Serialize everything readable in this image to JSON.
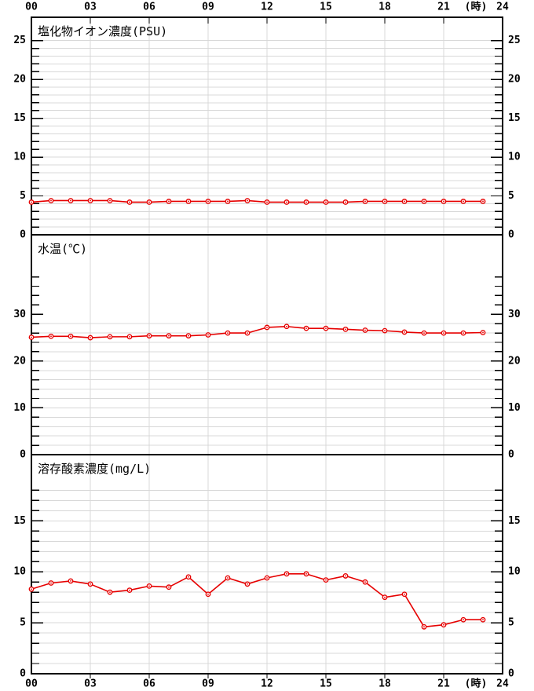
{
  "colors": {
    "series": "#e60000",
    "grid": "#d8d8d8",
    "axis": "#000000",
    "background": "#ffffff"
  },
  "x_axis": {
    "xlim": [
      0,
      24
    ],
    "tick_hours": [
      0,
      3,
      6,
      9,
      12,
      15,
      18,
      21,
      24
    ],
    "tick_labels": [
      "00",
      "03",
      "06",
      "09",
      "12",
      "15",
      "18",
      "21",
      "24"
    ],
    "unit_label": "(時)",
    "shown_on_top": true,
    "shown_on_bottom": true
  },
  "chart_data": [
    {
      "type": "line",
      "title": "塩化物イオン濃度(PSU)",
      "x": [
        0,
        1,
        2,
        3,
        4,
        5,
        6,
        7,
        8,
        9,
        10,
        11,
        12,
        13,
        14,
        15,
        16,
        17,
        18,
        19,
        20,
        21,
        22,
        23
      ],
      "values": [
        4.2,
        4.4,
        4.4,
        4.4,
        4.4,
        4.2,
        4.2,
        4.3,
        4.3,
        4.3,
        4.3,
        4.4,
        4.2,
        4.2,
        4.2,
        4.2,
        4.2,
        4.3,
        4.3,
        4.3,
        4.3,
        4.3,
        4.3,
        4.3
      ],
      "ylim": [
        0,
        28
      ],
      "y_major_ticks": [
        0,
        5,
        10,
        15,
        20,
        25
      ],
      "y_minor_step": 1,
      "y_tick_top": 25,
      "y_grid_top": 25,
      "grid": true,
      "legend": "none",
      "marker": "open-circle"
    },
    {
      "type": "line",
      "title": "水温(℃)",
      "x": [
        0,
        1,
        2,
        3,
        4,
        5,
        6,
        7,
        8,
        9,
        10,
        11,
        12,
        13,
        14,
        15,
        16,
        17,
        18,
        19,
        20,
        21,
        22,
        23
      ],
      "values": [
        25.1,
        25.3,
        25.3,
        25.0,
        25.2,
        25.2,
        25.4,
        25.4,
        25.4,
        25.6,
        26.0,
        26.0,
        27.2,
        27.4,
        27.0,
        27.0,
        26.8,
        26.6,
        26.5,
        26.2,
        26.0,
        26.0,
        26.0,
        26.1
      ],
      "ylim": [
        0,
        47
      ],
      "y_major_ticks": [
        0,
        10,
        20,
        30
      ],
      "y_minor_step": 2,
      "y_tick_top": 38,
      "y_grid_top": 28,
      "grid": true,
      "legend": "none",
      "marker": "open-circle"
    },
    {
      "type": "line",
      "title": "溶存酸素濃度(mg/L)",
      "x": [
        0,
        1,
        2,
        3,
        4,
        5,
        6,
        7,
        8,
        9,
        10,
        11,
        12,
        13,
        14,
        15,
        16,
        17,
        18,
        19,
        20,
        21,
        22,
        23
      ],
      "values": [
        8.3,
        8.9,
        9.1,
        8.8,
        8.0,
        8.2,
        8.6,
        8.5,
        9.5,
        7.8,
        9.4,
        8.8,
        9.4,
        9.8,
        9.8,
        9.2,
        9.6,
        9.0,
        7.5,
        7.8,
        4.6,
        4.8,
        5.3,
        5.3
      ],
      "ylim": [
        0,
        21.5
      ],
      "y_major_ticks": [
        0,
        5,
        10,
        15
      ],
      "y_minor_step": 1,
      "y_tick_top": 18,
      "y_grid_top": 18,
      "grid": true,
      "legend": "none",
      "marker": "open-circle"
    }
  ]
}
